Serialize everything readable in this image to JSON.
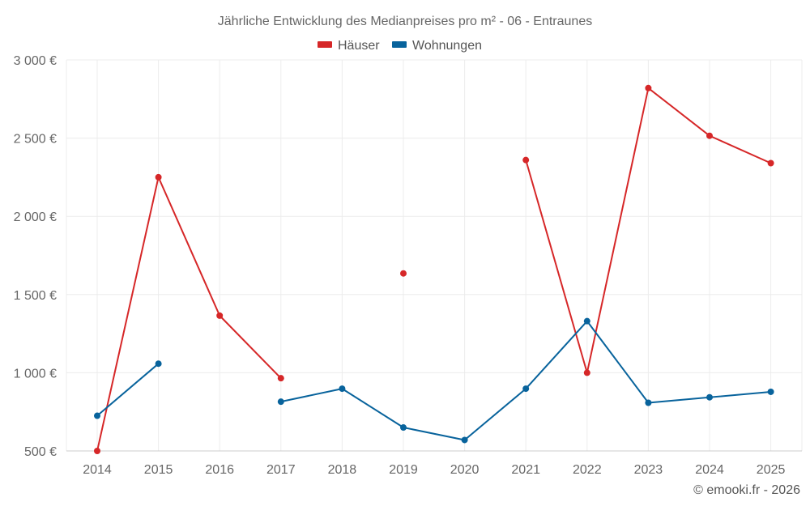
{
  "chart_data": {
    "type": "line",
    "title": "Jährliche Entwicklung des Medianpreises pro m² - 06 - Entraunes",
    "xlabel": "",
    "ylabel": "",
    "categories": [
      "2014",
      "2015",
      "2016",
      "2017",
      "2018",
      "2019",
      "2020",
      "2021",
      "2022",
      "2023",
      "2024",
      "2025"
    ],
    "ylim": [
      500,
      3000
    ],
    "y_ticks": [
      500,
      1000,
      1500,
      2000,
      2500,
      3000
    ],
    "y_tick_labels": [
      "500 €",
      "1 000 €",
      "1 500 €",
      "2 000 €",
      "2 500 €",
      "3 000 €"
    ],
    "grid": true,
    "legend_position": "top",
    "series": [
      {
        "name": "Häuser",
        "color": "#d62728",
        "values": [
          500,
          2250,
          1365,
          965,
          null,
          1635,
          null,
          2360,
          1000,
          2820,
          2515,
          2340
        ]
      },
      {
        "name": "Wohnungen",
        "color": "#08639c",
        "values": [
          725,
          1058,
          null,
          815,
          898,
          650,
          570,
          898,
          1330,
          808,
          843,
          878
        ]
      }
    ],
    "credit": "© emooki.fr - 2026"
  }
}
